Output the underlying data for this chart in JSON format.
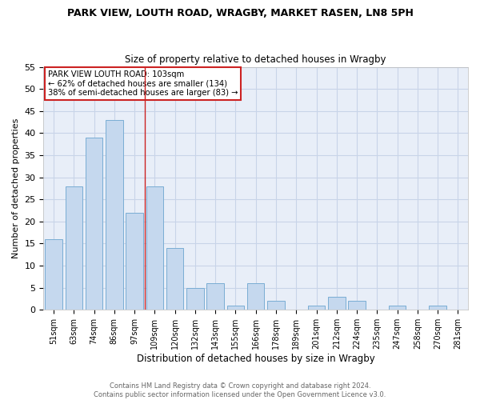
{
  "title1": "PARK VIEW, LOUTH ROAD, WRAGBY, MARKET RASEN, LN8 5PH",
  "title2": "Size of property relative to detached houses in Wragby",
  "xlabel": "Distribution of detached houses by size in Wragby",
  "ylabel": "Number of detached properties",
  "categories": [
    "51sqm",
    "63sqm",
    "74sqm",
    "86sqm",
    "97sqm",
    "109sqm",
    "120sqm",
    "132sqm",
    "143sqm",
    "155sqm",
    "166sqm",
    "178sqm",
    "189sqm",
    "201sqm",
    "212sqm",
    "224sqm",
    "235sqm",
    "247sqm",
    "258sqm",
    "270sqm",
    "281sqm"
  ],
  "values": [
    16,
    28,
    39,
    43,
    22,
    28,
    14,
    5,
    6,
    1,
    6,
    2,
    0,
    1,
    3,
    2,
    0,
    1,
    0,
    1,
    0
  ],
  "bar_color": "#c5d8ee",
  "bar_edge_color": "#7aadd4",
  "vline_x_index": 4,
  "annotation_title": "PARK VIEW LOUTH ROAD: 103sqm",
  "annotation_line1": "← 62% of detached houses are smaller (134)",
  "annotation_line2": "38% of semi-detached houses are larger (83) →",
  "annotation_box_color": "#ffffff",
  "annotation_box_edge_color": "#cc2222",
  "ylim": [
    0,
    55
  ],
  "yticks": [
    0,
    5,
    10,
    15,
    20,
    25,
    30,
    35,
    40,
    45,
    50,
    55
  ],
  "grid_color": "#c8d4e8",
  "footnote": "Contains HM Land Registry data © Crown copyright and database right 2024.\nContains public sector information licensed under the Open Government Licence v3.0.",
  "bg_color": "#e8eef8",
  "fig_bg_color": "#ffffff"
}
